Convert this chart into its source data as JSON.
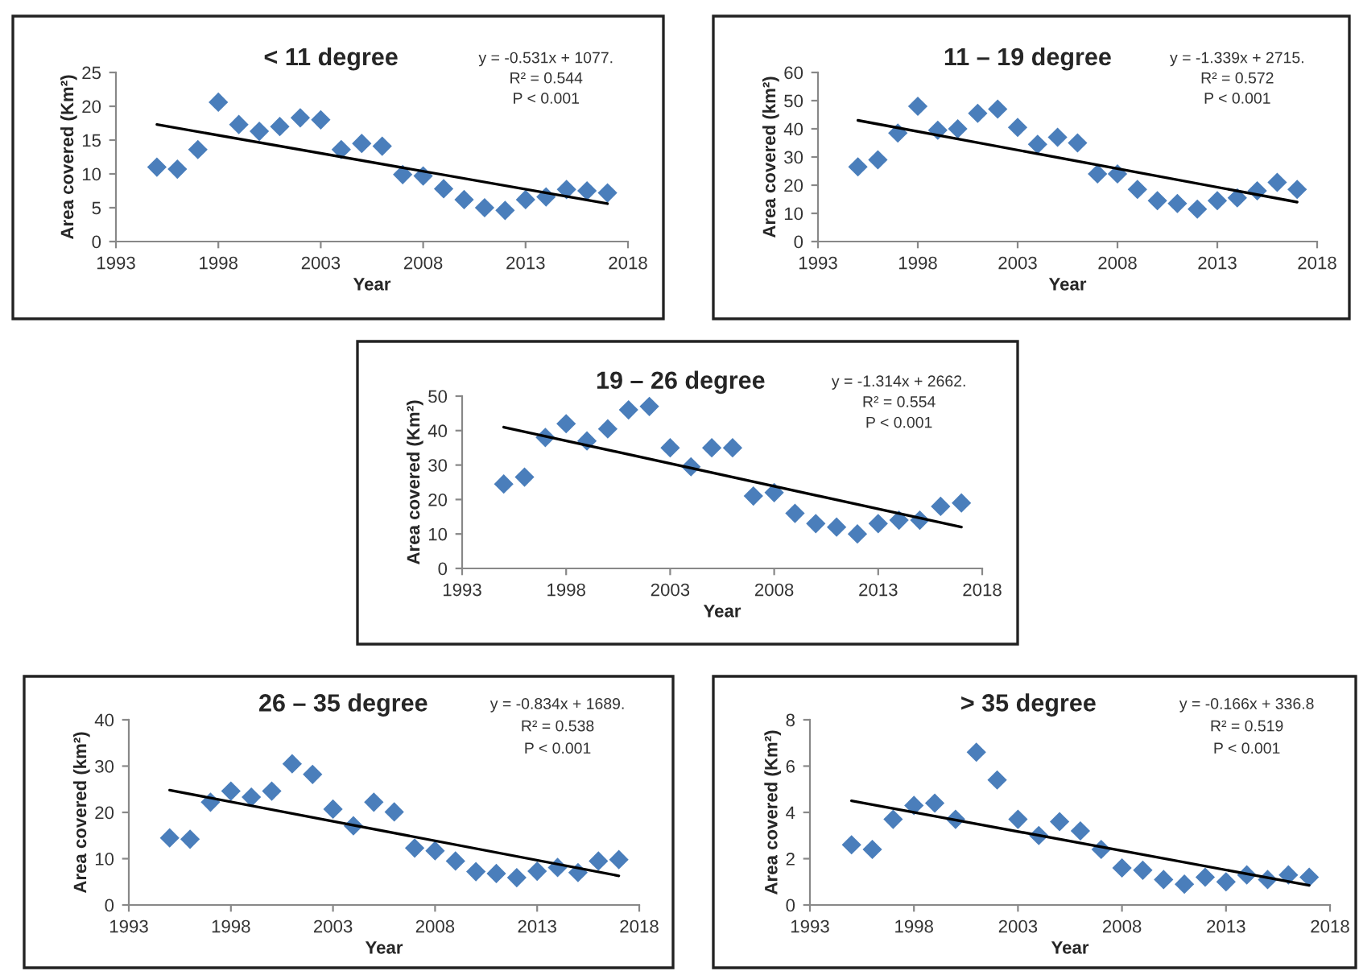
{
  "chart_data": [
    {
      "type": "scatter",
      "title": "< 11 degree",
      "xlabel": "Year",
      "ylabel": "Area covered (Km²)",
      "xlim": [
        1993,
        2018
      ],
      "xticks": [
        1993,
        1998,
        2003,
        2008,
        2013,
        2018
      ],
      "ylim": [
        0,
        25
      ],
      "yticks": [
        0,
        5,
        10,
        15,
        20,
        25
      ],
      "grid": false,
      "legend": false,
      "annotations": [
        "y = -0.531x + 1077.",
        "R² = 0.544",
        "P < 0.001"
      ],
      "series": [
        {
          "marker": "diamond",
          "color": "#4a7ebb",
          "x": [
            1995,
            1996,
            1997,
            1998,
            1999,
            2000,
            2001,
            2002,
            2003,
            2004,
            2005,
            2006,
            2007,
            2008,
            2009,
            2010,
            2011,
            2012,
            2013,
            2014,
            2015,
            2016,
            2017
          ],
          "values": [
            11,
            10.7,
            13.6,
            20.6,
            17.3,
            16.3,
            17,
            18.3,
            18,
            13.6,
            14.5,
            14.1,
            9.9,
            9.7,
            7.8,
            6.2,
            5,
            4.6,
            6.2,
            6.6,
            7.7,
            7.5,
            7.2
          ]
        },
        {
          "type": "line",
          "color": "#000000",
          "x": [
            1995,
            2017
          ],
          "values": [
            17.3,
            5.6
          ]
        }
      ]
    },
    {
      "type": "scatter",
      "title": "11 – 19 degree",
      "xlabel": "Year",
      "ylabel": "Area covered (km²)",
      "xlim": [
        1993,
        2018
      ],
      "xticks": [
        1993,
        1998,
        2003,
        2008,
        2013,
        2018
      ],
      "ylim": [
        0,
        60
      ],
      "yticks": [
        0,
        10,
        20,
        30,
        40,
        50,
        60
      ],
      "grid": false,
      "legend": false,
      "annotations": [
        "y = -1.339x + 2715.",
        "R² = 0.572",
        "P < 0.001"
      ],
      "series": [
        {
          "marker": "diamond",
          "color": "#4a7ebb",
          "x": [
            1995,
            1996,
            1997,
            1998,
            1999,
            2000,
            2001,
            2002,
            2003,
            2004,
            2005,
            2006,
            2007,
            2008,
            2009,
            2010,
            2011,
            2012,
            2013,
            2014,
            2015,
            2016,
            2017
          ],
          "values": [
            26.5,
            29,
            38.5,
            48,
            39.5,
            40,
            45.5,
            47,
            40.5,
            34.5,
            37,
            35,
            24,
            24,
            18.5,
            14.5,
            13.5,
            11.5,
            14.5,
            15.5,
            18,
            21,
            18.5
          ]
        },
        {
          "type": "line",
          "color": "#000000",
          "x": [
            1995,
            2017
          ],
          "values": [
            43,
            14
          ]
        }
      ]
    },
    {
      "type": "scatter",
      "title": "19 – 26 degree",
      "xlabel": "Year",
      "ylabel": "Area covered (Km²)",
      "xlim": [
        1993,
        2018
      ],
      "xticks": [
        1993,
        1998,
        2003,
        2008,
        2013,
        2018
      ],
      "ylim": [
        0,
        50
      ],
      "yticks": [
        0,
        10,
        20,
        30,
        40,
        50
      ],
      "grid": false,
      "legend": false,
      "annotations": [
        "y = -1.314x + 2662.",
        "R² = 0.554",
        "P < 0.001"
      ],
      "series": [
        {
          "marker": "diamond",
          "color": "#4a7ebb",
          "x": [
            1995,
            1996,
            1997,
            1998,
            1999,
            2000,
            2001,
            2002,
            2003,
            2004,
            2005,
            2006,
            2007,
            2008,
            2009,
            2010,
            2011,
            2012,
            2013,
            2014,
            2015,
            2016,
            2017
          ],
          "values": [
            24.5,
            26.5,
            38,
            42,
            37,
            40.5,
            46,
            47,
            35,
            29.5,
            35,
            35,
            21,
            22,
            16,
            13,
            12,
            10,
            13,
            14,
            14,
            18,
            19
          ]
        },
        {
          "type": "line",
          "color": "#000000",
          "x": [
            1995,
            2017
          ],
          "values": [
            41,
            12
          ]
        }
      ]
    },
    {
      "type": "scatter",
      "title": "26 – 35 degree",
      "xlabel": "Year",
      "ylabel": "Area covered (km²)",
      "xlim": [
        1993,
        2018
      ],
      "xticks": [
        1993,
        1998,
        2003,
        2008,
        2013,
        2018
      ],
      "ylim": [
        0,
        40
      ],
      "yticks": [
        0,
        10,
        20,
        30,
        40
      ],
      "grid": false,
      "legend": false,
      "annotations": [
        "y = -0.834x + 1689.",
        "R² = 0.538",
        "P < 0.001"
      ],
      "series": [
        {
          "marker": "diamond",
          "color": "#4a7ebb",
          "x": [
            1995,
            1996,
            1997,
            1998,
            1999,
            2000,
            2001,
            2002,
            2003,
            2004,
            2005,
            2006,
            2007,
            2008,
            2009,
            2010,
            2011,
            2012,
            2013,
            2014,
            2015,
            2016,
            2017
          ],
          "values": [
            14.5,
            14.2,
            22.2,
            24.6,
            23.3,
            24.6,
            30.5,
            28.2,
            20.7,
            17.1,
            22.2,
            20.1,
            12.3,
            11.7,
            9.5,
            7.2,
            6.8,
            5.9,
            7.3,
            8.1,
            7,
            9.5,
            9.8
          ]
        },
        {
          "type": "line",
          "color": "#000000",
          "x": [
            1995,
            2017
          ],
          "values": [
            24.8,
            6.3
          ]
        }
      ]
    },
    {
      "type": "scatter",
      "title": "> 35 degree",
      "xlabel": "Year",
      "ylabel": "Area covered (Km²)",
      "xlim": [
        1993,
        2018
      ],
      "xticks": [
        1993,
        1998,
        2003,
        2008,
        2013,
        2018
      ],
      "ylim": [
        0,
        8
      ],
      "yticks": [
        0,
        2,
        4,
        6,
        8
      ],
      "grid": false,
      "legend": false,
      "annotations": [
        "y = -0.166x + 336.8",
        "R² = 0.519",
        "P < 0.001"
      ],
      "series": [
        {
          "marker": "diamond",
          "color": "#4a7ebb",
          "x": [
            1995,
            1996,
            1997,
            1998,
            1999,
            2000,
            2001,
            2002,
            2003,
            2004,
            2005,
            2006,
            2007,
            2008,
            2009,
            2010,
            2011,
            2012,
            2013,
            2014,
            2015,
            2016,
            2017
          ],
          "values": [
            2.6,
            2.4,
            3.7,
            4.3,
            4.4,
            3.7,
            6.6,
            5.4,
            3.7,
            3.0,
            3.6,
            3.2,
            2.4,
            1.6,
            1.5,
            1.1,
            0.9,
            1.2,
            1.0,
            1.3,
            1.1,
            1.3,
            1.2
          ]
        },
        {
          "type": "line",
          "color": "#000000",
          "x": [
            1995,
            2017
          ],
          "values": [
            4.5,
            0.85
          ]
        }
      ]
    }
  ]
}
